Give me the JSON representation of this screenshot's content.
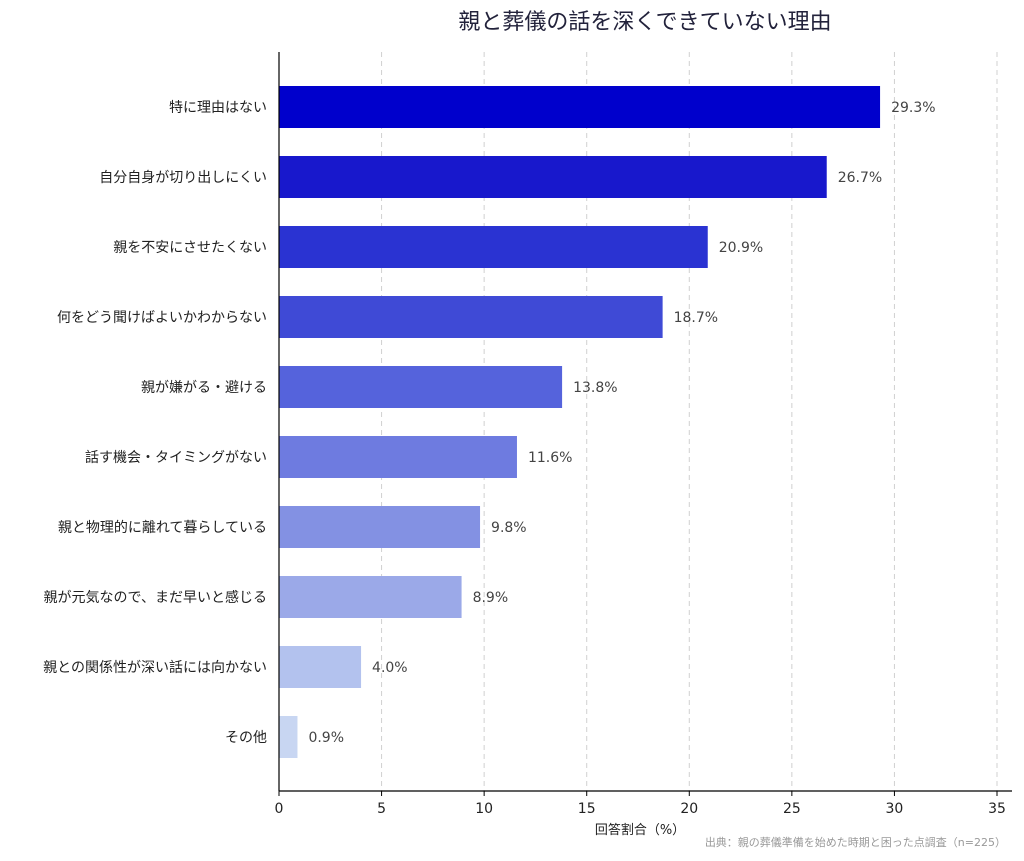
{
  "chart_data": {
    "type": "bar",
    "orientation": "horizontal",
    "title": "親と葬儀の話を深くできていない理由",
    "xlabel": "回答割合（%）",
    "ylabel": "",
    "xlim": [
      0,
      36
    ],
    "xticks": [
      0,
      5,
      10,
      15,
      20,
      25,
      30,
      35
    ],
    "grid": "vertical dashed",
    "categories": [
      "特に理由はない",
      "自分自身が切り出しにくい",
      "親を不安にさせたくない",
      "何をどう聞けばよいかわからない",
      "親が嫌がる・避ける",
      "話す機会・タイミングがない",
      "親と物理的に離れて暮らしている",
      "親が元気なので、まだ早いと感じる",
      "親との関係性が深い話には向かない",
      "その他"
    ],
    "values": [
      29.3,
      26.7,
      20.9,
      18.7,
      13.8,
      11.6,
      9.8,
      8.9,
      4.0,
      0.9
    ],
    "value_labels": [
      "29.3%",
      "26.7%",
      "20.9%",
      "18.7%",
      "13.8%",
      "11.6%",
      "9.8%",
      "8.9%",
      "4.0%",
      "0.9%"
    ],
    "colors": [
      "#0000cc",
      "#1818cc",
      "#2a33d2",
      "#3f4ad6",
      "#5563dc",
      "#6e7be0",
      "#8391e3",
      "#9ba9e8",
      "#b3c2ee",
      "#c8d6f2"
    ],
    "source": "出典：親の葬儀準備を始めた時期と困った点調査（n=225）"
  }
}
